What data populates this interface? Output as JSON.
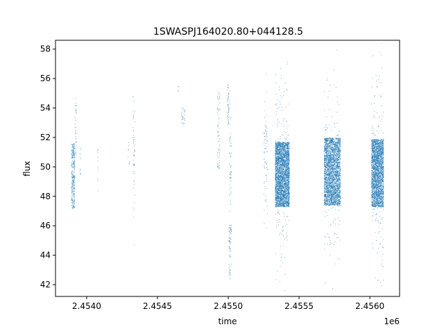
{
  "chart_data": {
    "type": "scatter",
    "title": "1SWASPJ164020.80+044128.5",
    "xlabel": "time",
    "ylabel": "flux",
    "x_offset_label": "1e6",
    "xlim": [
      2453780,
      2456210
    ],
    "ylim": [
      41.2,
      58.6
    ],
    "x_ticks": [
      2.454,
      2.4545,
      2.455,
      2.4555,
      2.456
    ],
    "x_tick_labels": [
      "2.4540",
      "2.4545",
      "2.4550",
      "2.4555",
      "2.4560"
    ],
    "y_ticks": [
      42,
      44,
      46,
      48,
      50,
      52,
      54,
      56,
      58
    ],
    "y_tick_labels": [
      "42",
      "44",
      "46",
      "48",
      "50",
      "52",
      "54",
      "56",
      "58"
    ],
    "grid": false,
    "legend": "none",
    "series": [
      {
        "color": "#1f77b4",
        "clusters": [
          {
            "x": [
              2453890,
              2453915
            ],
            "y_center": 49.4,
            "y_spread": 2.2,
            "density": 320
          },
          {
            "x": [
              2453915,
              2453925
            ],
            "y_center": 52.8,
            "y_spread": 2.0,
            "density": 35
          },
          {
            "x": [
              2453950,
              2453958
            ],
            "y_center": 50.6,
            "y_spread": 1.6,
            "density": 12
          },
          {
            "x": [
              2454075,
              2454082
            ],
            "y_center": 49.8,
            "y_spread": 1.6,
            "density": 10
          },
          {
            "x": [
              2454290,
              2454300
            ],
            "y_center": 51.0,
            "y_spread": 1.0,
            "density": 8
          },
          {
            "x": [
              2454325,
              2454338
            ],
            "y_center": 51.5,
            "y_spread": 4.5,
            "density": 55
          },
          {
            "x": [
              2454642,
              2454650
            ],
            "y_center": 55.4,
            "y_spread": 0.3,
            "density": 4
          },
          {
            "x": [
              2454668,
              2454692
            ],
            "y_center": 53.5,
            "y_spread": 0.6,
            "density": 30
          },
          {
            "x": [
              2454920,
              2454940
            ],
            "y_center": 52.5,
            "y_spread": 2.6,
            "density": 70
          },
          {
            "x": [
              2454990,
              2455003
            ],
            "y_center": 54.3,
            "y_spread": 1.4,
            "density": 50
          },
          {
            "x": [
              2455005,
              2455020
            ],
            "y_center": 50.2,
            "y_spread": 4.8,
            "density": 60
          },
          {
            "x": [
              2455002,
              2455020
            ],
            "y_center": 45.0,
            "y_spread": 1.2,
            "density": 55
          },
          {
            "x": [
              2455002,
              2455015
            ],
            "y_center": 43.0,
            "y_spread": 0.6,
            "density": 15
          },
          {
            "x": [
              2455250,
              2455275
            ],
            "y_center": 50.8,
            "y_spread": 4.2,
            "density": 80
          },
          {
            "x": [
              2455330,
              2455430
            ],
            "y_center": 49.5,
            "y_spread": 2.2,
            "density": 3200
          },
          {
            "x": [
              2455330,
              2455430
            ],
            "y_center": 49.5,
            "y_spread": 7.5,
            "density": 260
          },
          {
            "x": [
              2455675,
              2455790
            ],
            "y_center": 49.7,
            "y_spread": 2.3,
            "density": 3000
          },
          {
            "x": [
              2455675,
              2455790
            ],
            "y_center": 49.7,
            "y_spread": 7.0,
            "density": 220
          },
          {
            "x": [
              2456010,
              2456095
            ],
            "y_center": 49.6,
            "y_spread": 2.3,
            "density": 2600
          },
          {
            "x": [
              2456010,
              2456095
            ],
            "y_center": 49.6,
            "y_spread": 7.8,
            "density": 240
          }
        ]
      }
    ]
  }
}
